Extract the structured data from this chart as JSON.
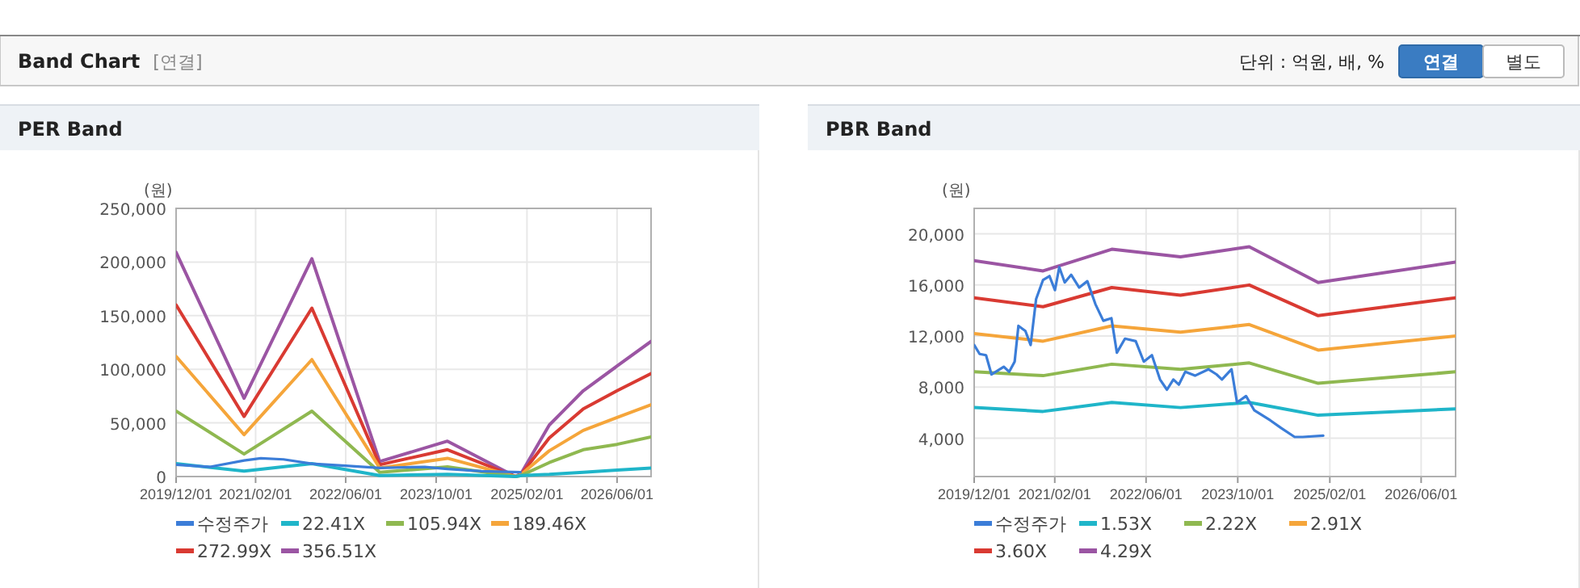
{
  "chart_data": [
    {
      "type": "other",
      "title": "Band Chart",
      "annotations": [
        "[연결]",
        "단위 : 억원, 배, %",
        "연결",
        "별도"
      ]
    },
    {
      "type": "line",
      "title": "PER Band",
      "ylabel": "(원)",
      "grid": true,
      "legend": "bottom",
      "x": [
        "2019-12-01",
        "2020-12-01",
        "2021-12-01",
        "2022-12-01",
        "2023-12-01",
        "2024-12-01",
        "2025-01-01",
        "2025-06-01",
        "2025-12-01",
        "2026-06-01",
        "2026-12-01"
      ],
      "xlim": [
        "2019-12-01",
        "2026-12-01"
      ],
      "xticks": [
        {
          "value": "2019-12-01",
          "label": "2019/12/01"
        },
        {
          "value": "2021-02-01",
          "label": "2021/02/01"
        },
        {
          "value": "2022-06-01",
          "label": "2022/06/01"
        },
        {
          "value": "2023-10-01",
          "label": "2023/10/01"
        },
        {
          "value": "2025-02-01",
          "label": "2025/02/01"
        },
        {
          "value": "2026-06-01",
          "label": "2026/06/01"
        }
      ],
      "ylim": [
        0,
        250000
      ],
      "yticks": [
        0,
        {
          "value": 50000,
          "label": "50,000"
        },
        {
          "value": 100000,
          "label": "100,000"
        },
        {
          "value": 150000,
          "label": "150,000"
        },
        {
          "value": 200000,
          "label": "200,000"
        },
        {
          "value": 250000,
          "label": "250,000"
        }
      ],
      "series": [
        {
          "name": "수정주가",
          "color": "#3b7dd8",
          "x": [
            "2019-12-01",
            "2020-06-01",
            "2020-12-01",
            "2021-03-01",
            "2021-07-01",
            "2021-12-01",
            "2022-06-01",
            "2022-12-01",
            "2023-08-01",
            "2023-12-01",
            "2024-06-01",
            "2024-12-28"
          ],
          "values": [
            11000,
            9000,
            15000,
            17000,
            16000,
            12000,
            10000,
            8000,
            9000,
            7000,
            5000,
            4000
          ]
        },
        {
          "name": "22.41X",
          "color": "#1fb5c9",
          "values": [
            12000,
            5000,
            12000,
            1000,
            2000,
            0,
            1000,
            2000,
            4000,
            6000,
            8000
          ]
        },
        {
          "name": "105.94X",
          "color": "#8fb850",
          "values": [
            61000,
            21000,
            61000,
            4000,
            9000,
            0,
            1000,
            13000,
            25000,
            30000,
            37000
          ]
        },
        {
          "name": "189.46X",
          "color": "#f5a53a",
          "values": [
            112000,
            39000,
            109000,
            8000,
            17000,
            0,
            2000,
            24000,
            43000,
            55000,
            67000
          ]
        },
        {
          "name": "272.99X",
          "color": "#d93a32",
          "values": [
            160000,
            56000,
            157000,
            11000,
            25000,
            0,
            2000,
            36000,
            63000,
            80000,
            96000
          ]
        },
        {
          "name": "356.51X",
          "color": "#9b55a3",
          "values": [
            209000,
            73000,
            203000,
            14000,
            33000,
            0,
            3000,
            48000,
            80000,
            103000,
            126000
          ]
        }
      ]
    },
    {
      "type": "line",
      "title": "PBR Band",
      "ylabel": "(원)",
      "grid": true,
      "legend": "bottom",
      "x": [
        "2019-12-01",
        "2020-12-01",
        "2021-12-01",
        "2022-12-01",
        "2023-12-01",
        "2024-12-01",
        "2026-12-01"
      ],
      "xlim": [
        "2019-12-01",
        "2026-12-01"
      ],
      "xticks": [
        {
          "value": "2019-12-01",
          "label": "2019/12/01"
        },
        {
          "value": "2021-02-01",
          "label": "2021/02/01"
        },
        {
          "value": "2022-06-01",
          "label": "2022/06/01"
        },
        {
          "value": "2023-10-01",
          "label": "2023/10/01"
        },
        {
          "value": "2025-02-01",
          "label": "2025/02/01"
        },
        {
          "value": "2026-06-01",
          "label": "2026/06/01"
        }
      ],
      "ylim": [
        1000,
        22000
      ],
      "yticks": [
        {
          "value": 4000,
          "label": "4,000"
        },
        {
          "value": 8000,
          "label": "8,000"
        },
        {
          "value": 12000,
          "label": "12,000"
        },
        {
          "value": 16000,
          "label": "16,000"
        },
        {
          "value": 20000,
          "label": "20,000"
        }
      ],
      "series": [
        {
          "name": "수정주가",
          "color": "#3b7dd8",
          "x": [
            "2019-12-01",
            "2019-12-30",
            "2020-02-02",
            "2020-03-02",
            "2020-05-06",
            "2020-06-04",
            "2020-07-03",
            "2020-07-23",
            "2020-08-29",
            "2020-09-26",
            "2020-10-25",
            "2020-12-01",
            "2021-01-04",
            "2021-02-02",
            "2021-02-25",
            "2021-03-26",
            "2021-04-29",
            "2021-06-11",
            "2021-07-24",
            "2021-09-05",
            "2021-10-17",
            "2021-11-29",
            "2021-12-28",
            "2022-02-09",
            "2022-04-07",
            "2022-05-20",
            "2022-07-02",
            "2022-08-14",
            "2022-09-20",
            "2022-10-24",
            "2022-11-22",
            "2022-12-26",
            "2023-02-16",
            "2023-04-28",
            "2023-06-10",
            "2023-07-09",
            "2023-08-29",
            "2023-09-27",
            "2023-11-14",
            "2023-12-27",
            "2024-03-22",
            "2024-05-18",
            "2024-07-29",
            "2024-09-10",
            "2024-12-28"
          ],
          "values": [
            11300,
            10600,
            10500,
            9000,
            9600,
            9200,
            10000,
            12800,
            12400,
            11300,
            14900,
            16400,
            16700,
            15600,
            17400,
            16200,
            16800,
            15800,
            16300,
            14500,
            13200,
            13400,
            10700,
            11800,
            11600,
            10000,
            10500,
            8600,
            7800,
            8600,
            8200,
            9200,
            8900,
            9400,
            9000,
            8600,
            9400,
            6800,
            7300,
            6200,
            5400,
            4800,
            4100,
            4100,
            4200
          ]
        },
        {
          "name": "1.53X",
          "color": "#1fb5c9",
          "values": [
            6400,
            6100,
            6800,
            6400,
            6800,
            5800,
            6300
          ]
        },
        {
          "name": "2.22X",
          "color": "#8fb850",
          "values": [
            9200,
            8900,
            9800,
            9400,
            9900,
            8300,
            9200
          ]
        },
        {
          "name": "2.91X",
          "color": "#f5a53a",
          "values": [
            12200,
            11600,
            12800,
            12300,
            12900,
            10900,
            12000
          ]
        },
        {
          "name": "3.60X",
          "color": "#d93a32",
          "values": [
            15000,
            14300,
            15800,
            15200,
            16000,
            13600,
            15000
          ]
        },
        {
          "name": "4.29X",
          "color": "#9b55a3",
          "values": [
            17900,
            17100,
            18800,
            18200,
            19000,
            16200,
            17800
          ]
        }
      ]
    }
  ]
}
